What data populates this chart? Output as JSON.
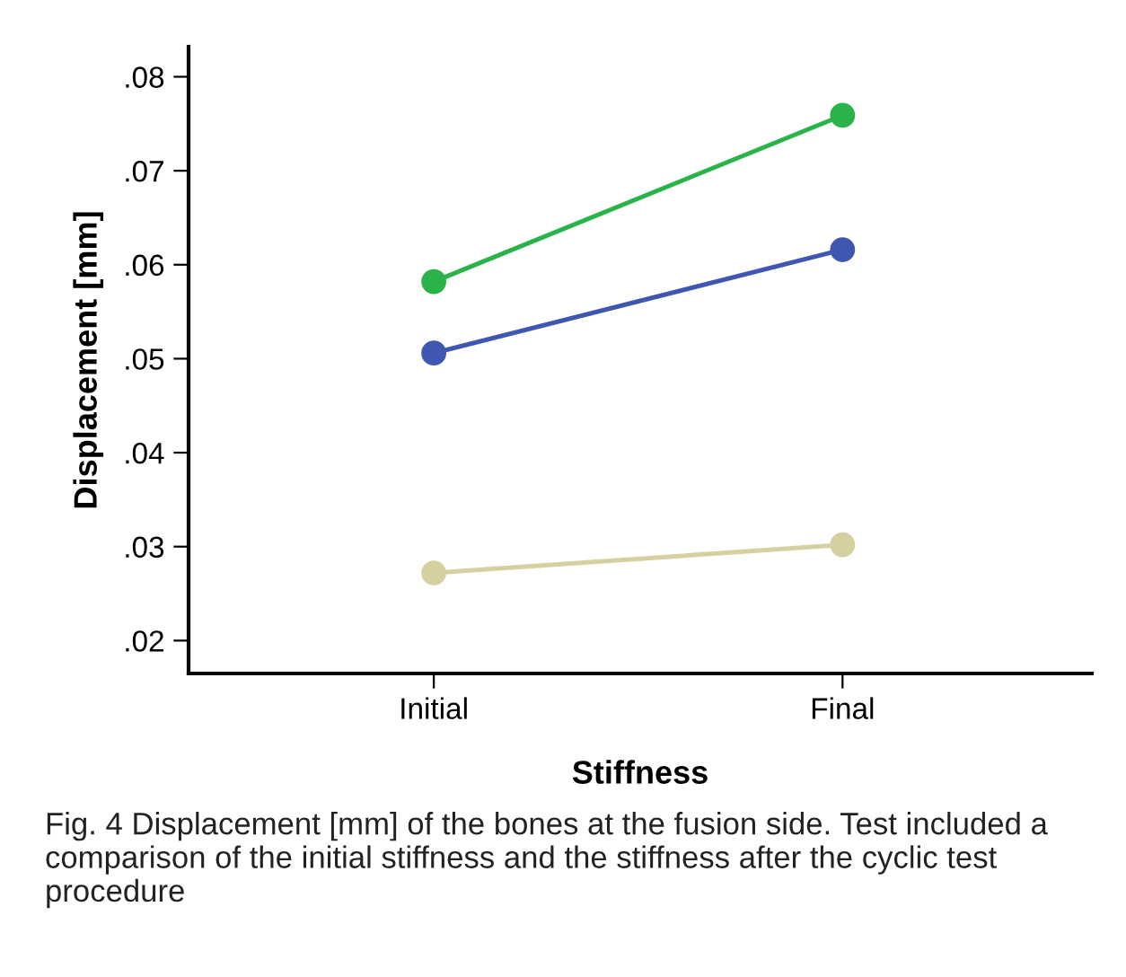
{
  "chart_data": {
    "type": "line",
    "xlabel": "Stiffness",
    "ylabel": "Displacement [mm]",
    "categories": [
      "Initial",
      "Final"
    ],
    "series": [
      {
        "color": "#2ab34a",
        "values": [
          0.0582,
          0.0759
        ]
      },
      {
        "color": "#3f57b0",
        "values": [
          0.0506,
          0.0616
        ]
      },
      {
        "color": "#d6d0a0",
        "values": [
          0.0272,
          0.0302
        ]
      }
    ],
    "ylim": [
      0.0165,
      0.0832
    ],
    "yticks": [
      {
        "value": 0.02,
        "label": ".02"
      },
      {
        "value": 0.03,
        "label": ".03"
      },
      {
        "value": 0.04,
        "label": ".04"
      },
      {
        "value": 0.05,
        "label": ".05"
      },
      {
        "value": 0.06,
        "label": ".06"
      },
      {
        "value": 0.07,
        "label": ".07"
      },
      {
        "value": 0.08,
        "label": ".08"
      }
    ],
    "marker": "circle",
    "line_style": "solid",
    "grid": false,
    "legend": false,
    "annotations": [
      "Fig. 4 Displacement [mm] of the bones at the fusion side. Test included a comparison of the initial stiffness and the stiffness after the cyclic test procedure"
    ]
  }
}
